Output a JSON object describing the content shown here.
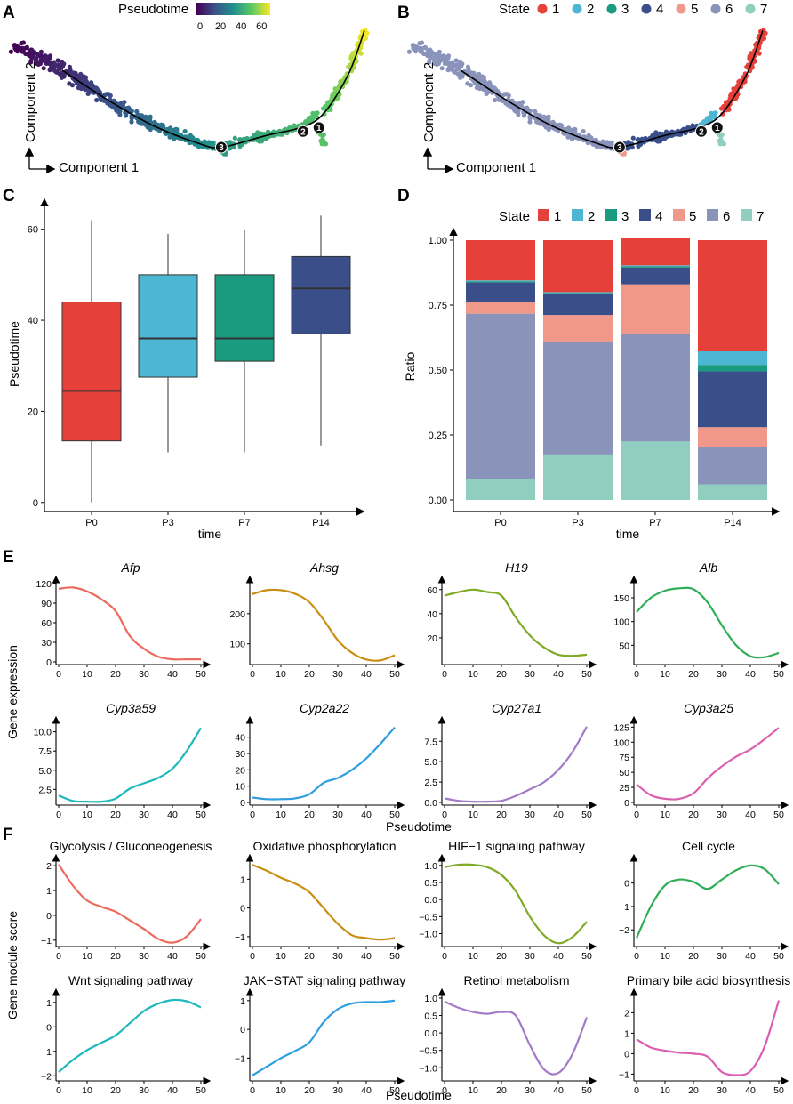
{
  "panel_labels": {
    "A": "A",
    "B": "B",
    "C": "C",
    "D": "D",
    "E": "E",
    "F": "F"
  },
  "colors": {
    "state": [
      "#e5413a",
      "#4db6d2",
      "#1a9a7e",
      "#3a4f8a",
      "#f0988a",
      "#8a93ba",
      "#90cfc0"
    ],
    "pseudotime_scale": [
      "#440154",
      "#3b528b",
      "#21908c",
      "#5dc963",
      "#fde725"
    ]
  },
  "chart_data": [
    {
      "id": "A",
      "type": "scatter",
      "title": "",
      "xlabel": "Component 1",
      "ylabel": "Component 2",
      "legend_title": "Pseudotime",
      "legend_ticks": [
        "0",
        "20",
        "40",
        "60"
      ],
      "legend_range": [
        0,
        65
      ],
      "branch_points": [
        "1",
        "2",
        "3"
      ],
      "trajectory": [
        [
          -7,
          1.8
        ],
        [
          -5,
          0.3
        ],
        [
          -3,
          -1.0
        ],
        [
          -1,
          -1.9
        ],
        [
          0,
          -2.1
        ],
        [
          2,
          -1.5
        ],
        [
          3.5,
          -1.1
        ],
        [
          4.5,
          -0.4
        ],
        [
          5.6,
          1.6
        ],
        [
          6.3,
          3.8
        ]
      ]
    },
    {
      "id": "B",
      "type": "scatter",
      "title": "",
      "xlabel": "Component 1",
      "ylabel": "Component 2",
      "legend_title": "State",
      "legend_entries": [
        "1",
        "2",
        "3",
        "4",
        "5",
        "6",
        "7"
      ],
      "branch_points": [
        "1",
        "2",
        "3"
      ]
    },
    {
      "id": "C",
      "type": "box",
      "title": "",
      "xlabel": "time",
      "ylabel": "Pseudotime",
      "categories": [
        "P0",
        "P3",
        "P7",
        "P14"
      ],
      "boxes": [
        {
          "min": 0,
          "q1": 13.5,
          "median": 24.5,
          "q3": 44,
          "max": 62
        },
        {
          "min": 11,
          "q1": 27.5,
          "median": 36,
          "q3": 50,
          "max": 59
        },
        {
          "min": 11,
          "q1": 31,
          "median": 36,
          "q3": 50,
          "max": 60
        },
        {
          "min": 12.5,
          "q1": 37,
          "median": 47,
          "q3": 54,
          "max": 63
        }
      ],
      "yticks": [
        "0",
        "20",
        "40",
        "60"
      ],
      "ylim": [
        -2,
        66
      ]
    },
    {
      "id": "D",
      "type": "bar",
      "stacked": true,
      "title": "",
      "xlabel": "time",
      "ylabel": "Ratio",
      "legend_title": "State",
      "categories": [
        "P0",
        "P3",
        "P7",
        "P14"
      ],
      "series": [
        {
          "name": "1",
          "values": [
            0.155,
            0.2,
            0.105,
            0.425
          ]
        },
        {
          "name": "2",
          "values": [
            0.003,
            0.003,
            0.003,
            0.055
          ]
        },
        {
          "name": "3",
          "values": [
            0.005,
            0.005,
            0.005,
            0.025
          ]
        },
        {
          "name": "4",
          "values": [
            0.075,
            0.08,
            0.065,
            0.215
          ]
        },
        {
          "name": "5",
          "values": [
            0.045,
            0.105,
            0.19,
            0.075
          ]
        },
        {
          "name": "6",
          "values": [
            0.637,
            0.432,
            0.415,
            0.145
          ]
        },
        {
          "name": "7",
          "values": [
            0.08,
            0.175,
            0.225,
            0.06
          ]
        }
      ],
      "yticks": [
        "0.00",
        "0.25",
        "0.50",
        "0.75",
        "1.00"
      ],
      "ylim": [
        0,
        1
      ]
    },
    {
      "id": "E",
      "type": "line",
      "xlabel": "Pseudotime",
      "ylabel": "Gene expression",
      "xticks": [
        "0",
        "10",
        "20",
        "30",
        "40",
        "50"
      ],
      "x": [
        0,
        5,
        10,
        15,
        20,
        25,
        30,
        35,
        40,
        45,
        50
      ],
      "panels": [
        {
          "title": "Afp",
          "color": "#eb6a5d",
          "ylim": [
            0,
            120
          ],
          "yticks": [
            0,
            30,
            60,
            90,
            120
          ],
          "values": [
            112,
            114,
            108,
            96,
            78,
            40,
            20,
            8,
            4,
            4,
            4
          ]
        },
        {
          "title": "Ahsg",
          "color": "#c98e13",
          "ylim": [
            40,
            300
          ],
          "yticks": [
            100,
            200
          ],
          "values": [
            265,
            278,
            278,
            266,
            238,
            180,
            112,
            70,
            48,
            45,
            62
          ]
        },
        {
          "title": "H19",
          "color": "#7faa25",
          "ylim": [
            0,
            65
          ],
          "yticks": [
            20,
            40,
            60
          ],
          "values": [
            55,
            58,
            60,
            58,
            55,
            37,
            22,
            12,
            6,
            5,
            6
          ]
        },
        {
          "title": "Alb",
          "color": "#2fae58",
          "ylim": [
            15,
            180
          ],
          "yticks": [
            50,
            100,
            150
          ],
          "values": [
            120,
            150,
            165,
            170,
            168,
            140,
            92,
            50,
            27,
            25,
            34
          ]
        },
        {
          "title": "Cyp3a59",
          "color": "#1db8bb",
          "ylim": [
            0.8,
            11
          ],
          "yticks": [
            2.5,
            5.0,
            7.5,
            10.0
          ],
          "yticklabels": [
            "2.5",
            "5.0",
            "7.5",
            "10.0"
          ],
          "values": [
            1.7,
            1.0,
            0.9,
            0.9,
            1.3,
            2.6,
            3.3,
            4.0,
            5.2,
            7.5,
            10.5
          ]
        },
        {
          "title": "Cyp2a22",
          "color": "#2d9ee0",
          "ylim": [
            0,
            48
          ],
          "yticks": [
            0,
            10,
            20,
            30,
            40
          ],
          "values": [
            3,
            2,
            2,
            2.5,
            5,
            12,
            15,
            20,
            27,
            36,
            46
          ]
        },
        {
          "title": "Cyp27a1",
          "color": "#a37ac7",
          "ylim": [
            0,
            9.6
          ],
          "yticks": [
            0,
            2.5,
            5.0,
            7.5
          ],
          "yticklabels": [
            "0.0",
            "2.5",
            "5.0",
            "7.5"
          ],
          "values": [
            0.5,
            0.2,
            0.1,
            0.1,
            0.2,
            0.8,
            1.6,
            2.5,
            4.0,
            6.2,
            9.3
          ]
        },
        {
          "title": "Cyp3a25",
          "color": "#db5fb0",
          "ylim": [
            0,
            130
          ],
          "yticks": [
            0,
            25,
            50,
            75,
            100,
            125
          ],
          "values": [
            30,
            12,
            6,
            6,
            15,
            40,
            60,
            76,
            88,
            105,
            124
          ]
        }
      ]
    },
    {
      "id": "F",
      "type": "line",
      "xlabel": "Pseudotime",
      "ylabel": "Gene module score",
      "xticks": [
        "0",
        "10",
        "20",
        "30",
        "40",
        "50"
      ],
      "x": [
        0,
        5,
        10,
        15,
        20,
        25,
        30,
        35,
        40,
        45,
        50
      ],
      "panels": [
        {
          "title": "Glycolysis / Gluconeogenesis",
          "color": "#eb6a5d",
          "ylim": [
            -1.15,
            2.15
          ],
          "yticks": [
            -1,
            0,
            1,
            2
          ],
          "values": [
            2.05,
            1.2,
            0.6,
            0.35,
            0.15,
            -0.2,
            -0.55,
            -0.95,
            -1.1,
            -0.85,
            -0.15
          ]
        },
        {
          "title": "Oxidative phosphorylation",
          "color": "#c98e13",
          "ylim": [
            -1.25,
            1.6
          ],
          "yticks": [
            -1,
            0,
            1
          ],
          "values": [
            1.5,
            1.3,
            1.05,
            0.85,
            0.55,
            0.0,
            -0.55,
            -0.95,
            -1.05,
            -1.1,
            -1.05
          ]
        },
        {
          "title": "HIF−1 signaling pathway",
          "color": "#7faa25",
          "ylim": [
            -1.3,
            1.1
          ],
          "yticks": [
            -1.0,
            -0.5,
            0.0,
            0.5,
            1.0
          ],
          "yticklabels": [
            "−1.0",
            "−0.5",
            "0.0",
            "0.5",
            "1.0"
          ],
          "values": [
            0.95,
            1.02,
            1.02,
            0.95,
            0.72,
            0.25,
            -0.5,
            -1.05,
            -1.28,
            -1.1,
            -0.65
          ]
        },
        {
          "title": "Cell cycle",
          "color": "#2fae58",
          "ylim": [
            -2.6,
            0.9
          ],
          "yticks": [
            -2,
            -1,
            0
          ],
          "values": [
            -2.35,
            -1.0,
            -0.1,
            0.15,
            0.05,
            -0.25,
            0.15,
            0.55,
            0.75,
            0.6,
            -0.05
          ]
        },
        {
          "title": "Wnt signaling pathway",
          "color": "#1db8bb",
          "ylim": [
            -2.1,
            1.25
          ],
          "yticks": [
            -2,
            -1,
            0,
            1
          ],
          "values": [
            -1.85,
            -1.35,
            -0.95,
            -0.65,
            -0.35,
            0.15,
            0.65,
            0.95,
            1.1,
            1.05,
            0.8
          ]
        },
        {
          "title": "JAK−STAT signaling pathway",
          "color": "#2d9ee0",
          "ylim": [
            -1.7,
            1.15
          ],
          "yticks": [
            -1,
            0,
            1
          ],
          "values": [
            -1.6,
            -1.3,
            -1.0,
            -0.75,
            -0.45,
            0.25,
            0.7,
            0.9,
            0.95,
            0.95,
            1.0
          ]
        },
        {
          "title": "Retinol metabolism",
          "color": "#a37ac7",
          "ylim": [
            -1.3,
            1.05
          ],
          "yticks": [
            -1.0,
            -0.5,
            0.0,
            0.5,
            1.0
          ],
          "yticklabels": [
            "−1.0",
            "−0.5",
            "0.0",
            "0.5",
            "1.0"
          ],
          "values": [
            0.9,
            0.72,
            0.6,
            0.55,
            0.6,
            0.5,
            -0.35,
            -1.05,
            -1.15,
            -0.6,
            0.45
          ]
        },
        {
          "title": "Primary bile acid biosynthesis",
          "color": "#db5fb0",
          "ylim": [
            -1.2,
            2.8
          ],
          "yticks": [
            -1,
            0,
            1,
            2
          ],
          "values": [
            0.7,
            0.3,
            0.15,
            0.05,
            0.0,
            -0.15,
            -0.9,
            -1.05,
            -0.85,
            0.35,
            2.6
          ]
        }
      ]
    }
  ]
}
